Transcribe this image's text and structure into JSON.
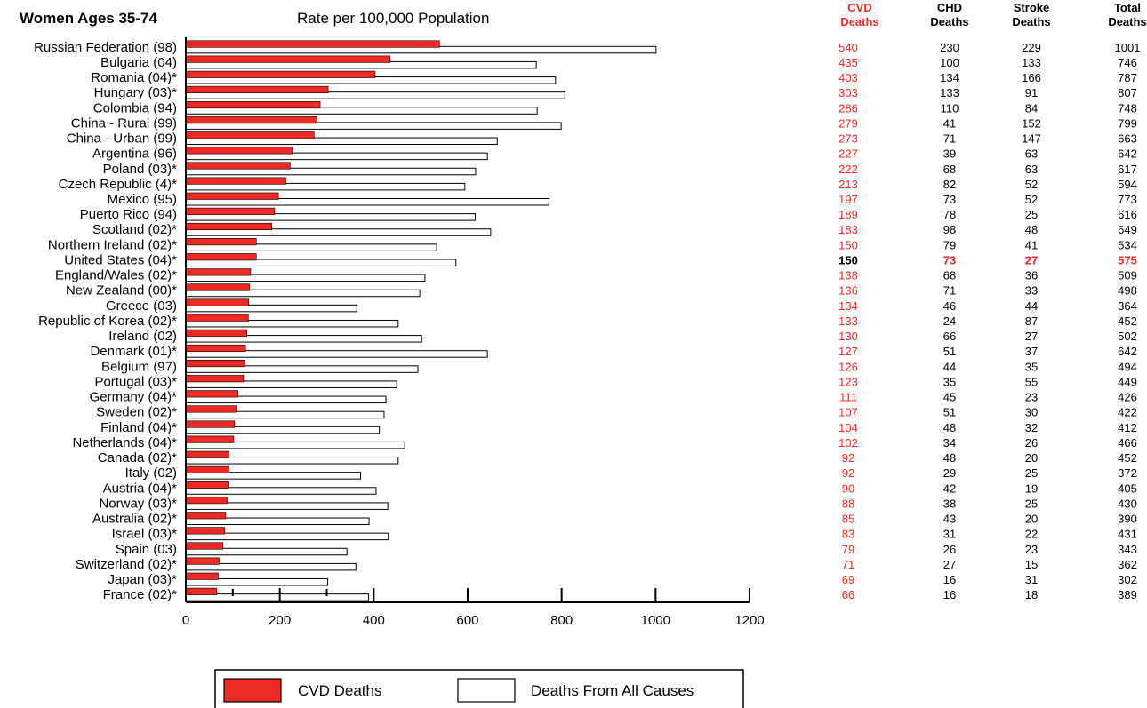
{
  "chart_data": {
    "type": "bar",
    "orientation": "horizontal",
    "title": "Women Ages 35-74",
    "subtitle": "Rate per 100,000 Population",
    "xlim": [
      0,
      1200
    ],
    "xticks": [
      "0",
      "200",
      "400",
      "600",
      "800",
      "1000",
      "1200"
    ],
    "colors": {
      "cvd": "#ee2a24",
      "all": "#ffffff",
      "axis": "#000000",
      "highlight": "#000000"
    },
    "categories": [
      "Russian Federation (98)",
      "Bulgaria (04)",
      "Romania (04)*",
      "Hungary (03)*",
      "Colombia (94)",
      "China - Rural (99)",
      "China - Urban (99)",
      "Argentina (96)",
      "Poland (03)*",
      "Czech Republic (4)*",
      "Mexico (95)",
      "Puerto Rico (94)",
      "Scotland (02)*",
      "Northern Ireland (02)*",
      "United States (04)*",
      "England/Wales (02)*",
      "New Zealand (00)*",
      "Greece (03)",
      "Republic of Korea (02)*",
      "Ireland (02)",
      "Denmark (01)*",
      "Belgium (97)",
      "Portugal (03)*",
      "Germany (04)*",
      "Sweden (02)*",
      "Finland (04)*",
      "Netherlands (04)*",
      "Canada (02)*",
      "Italy (02)",
      "Austria (04)*",
      "Norway (03)*",
      "Australia (02)*",
      "Israel (03)*",
      "Spain (03)",
      "Switzerland (02)*",
      "Japan (03)*",
      "France (02)*"
    ],
    "series": [
      {
        "name": "CVD Deaths",
        "values": [
          540,
          435,
          403,
          303,
          286,
          279,
          273,
          227,
          222,
          213,
          197,
          189,
          183,
          150,
          150,
          138,
          136,
          134,
          133,
          130,
          127,
          126,
          123,
          111,
          107,
          104,
          102,
          92,
          92,
          90,
          88,
          85,
          83,
          79,
          71,
          69,
          66
        ]
      },
      {
        "name": "Deaths From All Causes",
        "values": [
          1001,
          746,
          787,
          807,
          748,
          799,
          663,
          642,
          617,
          594,
          773,
          616,
          649,
          534,
          575,
          509,
          498,
          364,
          452,
          502,
          642,
          494,
          449,
          426,
          422,
          412,
          466,
          452,
          372,
          405,
          430,
          390,
          431,
          343,
          362,
          302,
          389
        ]
      }
    ],
    "table": {
      "headers": [
        {
          "line1": "CVD",
          "line2": "Deaths"
        },
        {
          "line1": "CHD",
          "line2": "Deaths"
        },
        {
          "line1": "Stroke",
          "line2": "Deaths"
        },
        {
          "line1": "Total",
          "line2": "Deaths"
        }
      ],
      "rows": [
        [
          "540",
          "230",
          "229",
          "1001"
        ],
        [
          "435",
          "100",
          "133",
          "746"
        ],
        [
          "403",
          "134",
          "166",
          "787"
        ],
        [
          "303",
          "133",
          "91",
          "807"
        ],
        [
          "286",
          "110",
          "84",
          "748"
        ],
        [
          "279",
          "41",
          "152",
          "799"
        ],
        [
          "273",
          "71",
          "147",
          "663"
        ],
        [
          "227",
          "39",
          "63",
          "642"
        ],
        [
          "222",
          "68",
          "63",
          "617"
        ],
        [
          "213",
          "82",
          "52",
          "594"
        ],
        [
          "197",
          "73",
          "52",
          "773"
        ],
        [
          "189",
          "78",
          "25",
          "616"
        ],
        [
          "183",
          "98",
          "48",
          "649"
        ],
        [
          "150",
          "79",
          "41",
          "534"
        ],
        [
          "150",
          "73",
          "27",
          "575"
        ],
        [
          "138",
          "68",
          "36",
          "509"
        ],
        [
          "136",
          "71",
          "33",
          "498"
        ],
        [
          "134",
          "46",
          "44",
          "364"
        ],
        [
          "133",
          "24",
          "87",
          "452"
        ],
        [
          "130",
          "66",
          "27",
          "502"
        ],
        [
          "127",
          "51",
          "37",
          "642"
        ],
        [
          "126",
          "44",
          "35",
          "494"
        ],
        [
          "123",
          "35",
          "55",
          "449"
        ],
        [
          "111",
          "45",
          "23",
          "426"
        ],
        [
          "107",
          "51",
          "30",
          "422"
        ],
        [
          "104",
          "48",
          "32",
          "412"
        ],
        [
          "102",
          "34",
          "26",
          "466"
        ],
        [
          "92",
          "48",
          "20",
          "452"
        ],
        [
          "92",
          "29",
          "25",
          "372"
        ],
        [
          "90",
          "42",
          "19",
          "405"
        ],
        [
          "88",
          "38",
          "25",
          "430"
        ],
        [
          "85",
          "43",
          "20",
          "390"
        ],
        [
          "83",
          "31",
          "22",
          "431"
        ],
        [
          "79",
          "26",
          "23",
          "343"
        ],
        [
          "71",
          "27",
          "15",
          "362"
        ],
        [
          "69",
          "16",
          "31",
          "302"
        ],
        [
          "66",
          "16",
          "18",
          "389"
        ]
      ],
      "highlight_row": 14
    },
    "legend": {
      "position": "bottom",
      "items": [
        {
          "label": "CVD Deaths",
          "color": "#ee2a24"
        },
        {
          "label": "Deaths From All Causes",
          "color": "#ffffff"
        }
      ]
    }
  }
}
